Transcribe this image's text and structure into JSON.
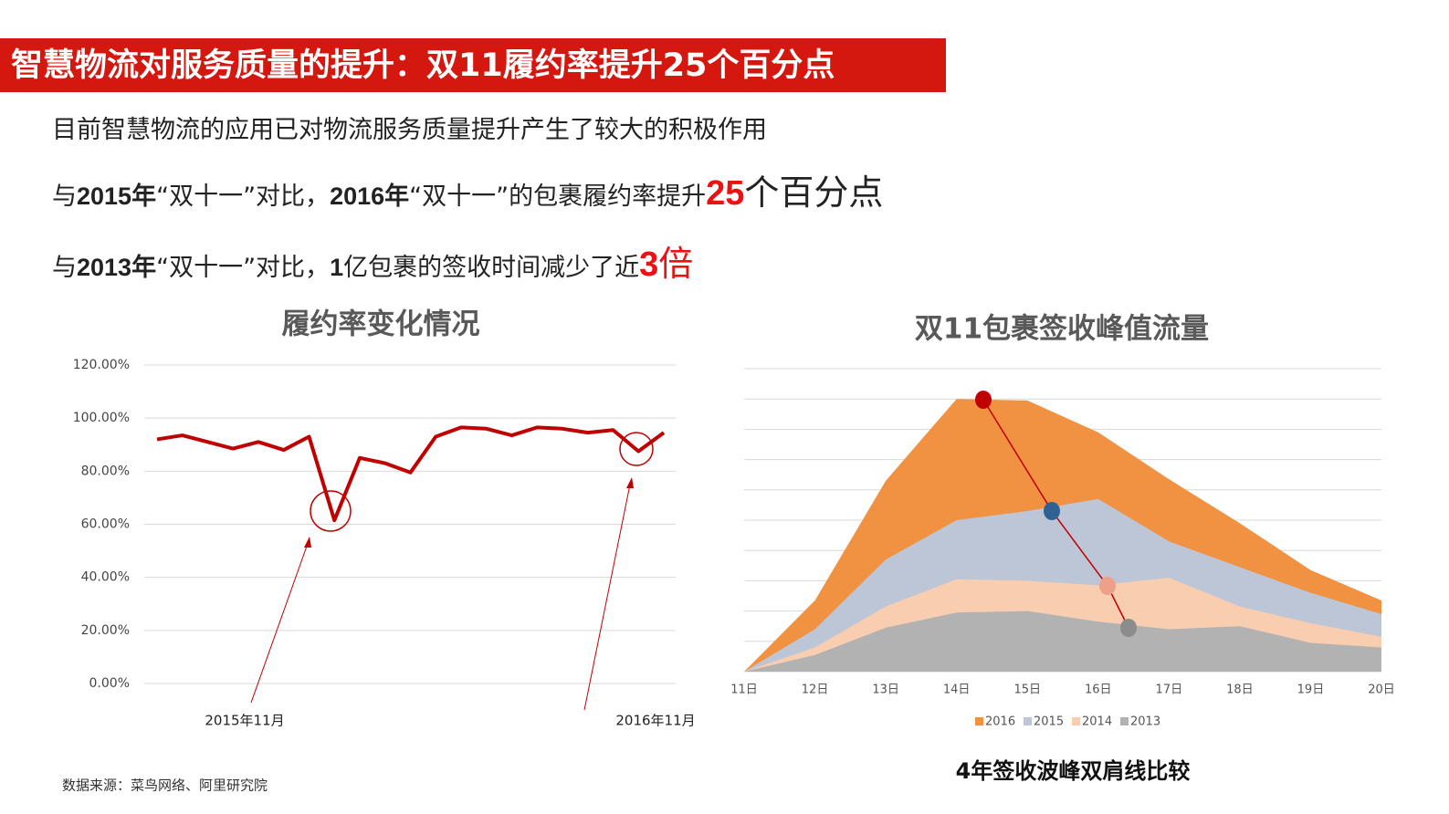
{
  "header": {
    "title": "智慧物流对服务质量的提升：双11履约率提升25个百分点"
  },
  "bullets": [
    {
      "segments": [
        {
          "text": "目前智慧物流的应用已对物流服务质量提升产生了较大的积极作用",
          "style": "normal"
        }
      ]
    },
    {
      "segments": [
        {
          "text": "与",
          "style": "normal"
        },
        {
          "text": "2015年",
          "style": "bold"
        },
        {
          "text": "“双十一”对比，",
          "style": "normal"
        },
        {
          "text": "2016年",
          "style": "bold"
        },
        {
          "text": "“双十一”的包裹履约率提升",
          "style": "normal"
        },
        {
          "text": "25",
          "style": "highlight"
        },
        {
          "text": "个百分点",
          "style": "large"
        }
      ]
    },
    {
      "segments": [
        {
          "text": "与",
          "style": "normal"
        },
        {
          "text": "2013年",
          "style": "bold"
        },
        {
          "text": "“双十一”对比，",
          "style": "normal"
        },
        {
          "text": "1",
          "style": "bold"
        },
        {
          "text": "亿包裹的签收时间减少了近",
          "style": "normal"
        },
        {
          "text": "3",
          "style": "highlight"
        },
        {
          "text": "倍",
          "style": "highlight-large"
        }
      ]
    }
  ],
  "chart_data": [
    {
      "type": "line",
      "title": "履约率变化情况",
      "color": "#c00000",
      "grid": true,
      "categories": [
        null,
        null,
        null,
        null,
        null,
        null,
        null,
        null,
        null,
        null,
        null,
        null,
        null,
        null,
        null,
        null,
        null,
        null,
        null,
        null,
        null
      ],
      "values": [
        92,
        93.5,
        91,
        88.5,
        91,
        88,
        93,
        61.5,
        85,
        83,
        79.5,
        93,
        96.5,
        96,
        93.5,
        96.5,
        96,
        94.5,
        95.5,
        87.5,
        94.5
      ],
      "ylim": [
        0,
        120
      ],
      "yticks": [
        {
          "value": 0,
          "label": "0.00%"
        },
        {
          "value": 20,
          "label": "20.00%"
        },
        {
          "value": 40,
          "label": "40.00%"
        },
        {
          "value": 60,
          "label": "60.00%"
        },
        {
          "value": 80,
          "label": "80.00%"
        },
        {
          "value": 100,
          "label": "100.00%"
        },
        {
          "value": 120,
          "label": "120.00%"
        }
      ],
      "annotations": [
        "2015年11月",
        "2016年11月"
      ]
    },
    {
      "type": "area",
      "title": "双11包裹签收峰值流量",
      "caption": "4年签收波峰双肩线比较",
      "grid": true,
      "show_ytick_labels": false,
      "categories": [
        "11日",
        "12日",
        "13日",
        "14日",
        "15日",
        "16日",
        "17日",
        "18日",
        "19日",
        "20日"
      ],
      "ylim": [
        0,
        10
      ],
      "yticks": [
        0,
        1,
        2,
        3,
        4,
        5,
        6,
        7,
        8,
        9,
        10
      ],
      "series": [
        {
          "name": "2016",
          "color": "#f09242",
          "values": [
            0,
            2.35,
            6.3,
            9.0,
            8.95,
            7.9,
            6.35,
            4.9,
            3.35,
            2.35
          ]
        },
        {
          "name": "2015",
          "color": "#bcc6d6",
          "values": [
            0,
            1.4,
            3.7,
            5.0,
            5.3,
            5.7,
            4.3,
            3.45,
            2.6,
            1.9
          ]
        },
        {
          "name": "2014",
          "color": "#f8cdb0",
          "values": [
            0,
            0.8,
            2.15,
            3.05,
            3.0,
            2.85,
            3.1,
            2.15,
            1.6,
            1.15
          ]
        },
        {
          "name": "2013",
          "color": "#b2b2b2",
          "values": [
            0,
            0.55,
            1.45,
            1.95,
            2.0,
            1.65,
            1.4,
            1.5,
            0.95,
            0.8
          ]
        }
      ]
    }
  ],
  "footer": {
    "source": "数据来源：菜鸟网络、阿里研究院"
  }
}
